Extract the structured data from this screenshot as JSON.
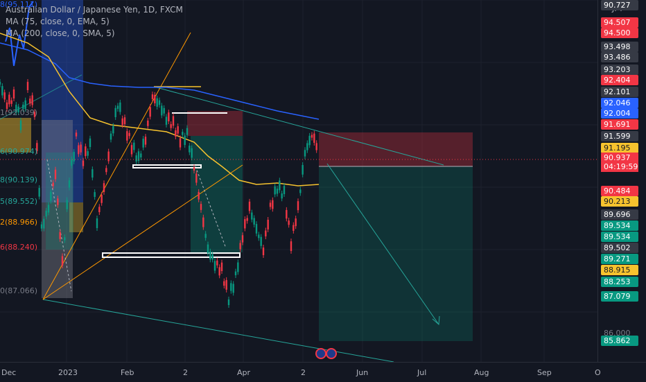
{
  "legend": {
    "symbol_line": "Australian Dollar / Japanese Yen, 1D, FXCM",
    "ma1": "MA (75, close, 0, EMA, 5)",
    "ma2": "MA (200, close, 0, SMA, 5)"
  },
  "price_axis": {
    "currency": "JPY",
    "countdown": "04:19:59",
    "labels": [
      {
        "text": "94.507",
        "color": "#f23645"
      },
      {
        "text": "94.500",
        "color": "#f23645"
      },
      {
        "text": "93.498",
        "color": "#363a45"
      },
      {
        "text": "93.486",
        "color": "#363a45"
      },
      {
        "text": "93.203",
        "color": "#363a45"
      },
      {
        "text": "92.404",
        "color": "#f23645"
      },
      {
        "text": "92.101",
        "color": "#363a45"
      },
      {
        "text": "92.046",
        "color": "#2962ff"
      },
      {
        "text": "92.004",
        "color": "#2962ff"
      },
      {
        "text": "91.691",
        "color": "#f23645"
      },
      {
        "text": "91.599",
        "color": "#363a45"
      },
      {
        "text": "91.195",
        "color": "#f7c32e"
      },
      {
        "text": "90.937",
        "color": "#f23645"
      },
      {
        "text": "90.727",
        "color": "#363a45"
      },
      {
        "text": "90.484",
        "color": "#f23645"
      },
      {
        "text": "90.213",
        "color": "#f7c32e"
      },
      {
        "text": "89.696",
        "color": "#363a45"
      },
      {
        "text": "89.534",
        "color": "#089981"
      },
      {
        "text": "89.534",
        "color": "#089981"
      },
      {
        "text": "89.502",
        "color": "#363a45"
      },
      {
        "text": "89.271",
        "color": "#089981"
      },
      {
        "text": "88.915",
        "color": "#f7c32e"
      },
      {
        "text": "88.253",
        "color": "#089981"
      },
      {
        "text": "87.079",
        "color": "#089981"
      },
      {
        "text": "85.862",
        "color": "#089981"
      }
    ],
    "ghost_label": "86.000"
  },
  "left_levels": [
    {
      "text": "8(95.111)",
      "color": "#2962ff"
    },
    {
      "text": "1(92.039)",
      "color": "#787b86"
    },
    {
      "text": "6(90.974)",
      "color": "#26a69a"
    },
    {
      "text": "8(90.139)",
      "color": "#26a69a"
    },
    {
      "text": "5(89.552)",
      "color": "#26a69a"
    },
    {
      "text": "2(88.966)",
      "color": "#ff9800"
    },
    {
      "text": "6(88.240)",
      "color": "#f23645"
    },
    {
      "text": "0(87.066)",
      "color": "#787b86"
    }
  ],
  "time_axis": [
    "Dec",
    "2023",
    "Feb",
    "2",
    "Apr",
    "2",
    "Jun",
    "Jul",
    "Aug",
    "Sep",
    "O"
  ],
  "colors": {
    "up": "#089981",
    "down": "#f23645",
    "ema": "#2962ff",
    "sma": "#f7c32e"
  }
}
